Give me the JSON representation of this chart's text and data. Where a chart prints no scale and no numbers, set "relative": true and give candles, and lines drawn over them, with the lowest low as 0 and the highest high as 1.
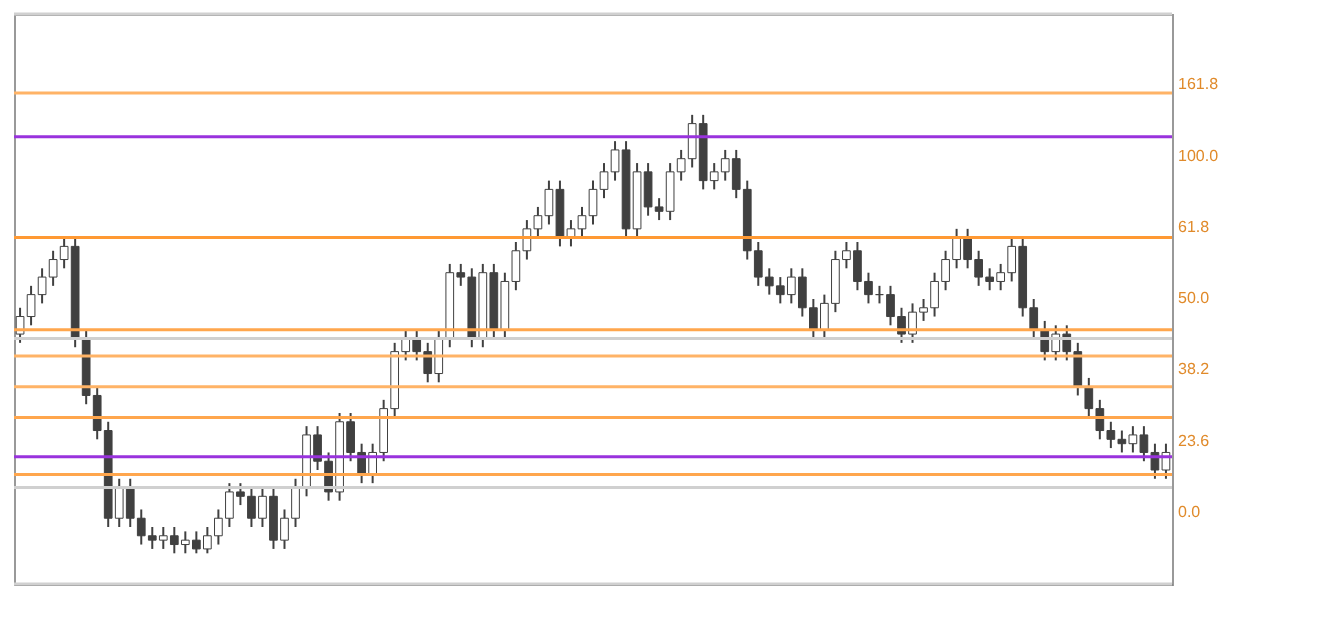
{
  "chart_data": {
    "type": "candlestick",
    "relative": true,
    "color": "#404040",
    "categories": [
      null,
      null,
      null,
      null,
      null,
      null,
      null,
      null,
      null,
      null,
      null,
      null,
      null,
      null,
      null,
      null,
      null,
      null,
      null,
      null,
      null,
      null,
      null,
      null,
      null,
      null,
      null,
      null,
      null,
      null,
      null,
      null,
      null,
      null,
      null,
      null,
      null,
      null,
      null,
      null,
      null,
      null,
      null,
      null,
      null,
      null,
      null,
      null,
      null,
      null,
      null,
      null,
      null,
      null,
      null,
      null,
      null,
      null,
      null,
      null,
      null,
      null,
      null,
      null,
      null,
      null,
      null,
      null,
      null,
      null,
      null,
      null,
      null,
      null,
      null,
      null,
      null,
      null,
      null,
      null,
      null,
      null,
      null,
      null,
      null,
      null,
      null,
      null,
      null,
      null,
      null,
      null,
      null,
      null,
      null,
      null,
      null,
      null,
      null,
      null,
      null,
      null,
      null,
      null,
      null
    ],
    "ohlc": [
      [
        0.5,
        0.56,
        0.48,
        0.54
      ],
      [
        0.54,
        0.61,
        0.52,
        0.59
      ],
      [
        0.59,
        0.65,
        0.57,
        0.63
      ],
      [
        0.63,
        0.69,
        0.61,
        0.67
      ],
      [
        0.67,
        0.72,
        0.65,
        0.7
      ],
      [
        0.7,
        0.72,
        0.47,
        0.49
      ],
      [
        0.49,
        0.51,
        0.34,
        0.36
      ],
      [
        0.36,
        0.38,
        0.26,
        0.28
      ],
      [
        0.28,
        0.3,
        0.06,
        0.08
      ],
      [
        0.08,
        0.17,
        0.06,
        0.15
      ],
      [
        0.15,
        0.17,
        0.06,
        0.08
      ],
      [
        0.08,
        0.1,
        0.02,
        0.04
      ],
      [
        0.04,
        0.06,
        0.01,
        0.03
      ],
      [
        0.03,
        0.06,
        0.01,
        0.04
      ],
      [
        0.04,
        0.06,
        0.0,
        0.02
      ],
      [
        0.02,
        0.05,
        0.0,
        0.03
      ],
      [
        0.03,
        0.05,
        0.0,
        0.01
      ],
      [
        0.01,
        0.06,
        0.0,
        0.04
      ],
      [
        0.04,
        0.1,
        0.02,
        0.08
      ],
      [
        0.08,
        0.16,
        0.06,
        0.14
      ],
      [
        0.14,
        0.16,
        0.11,
        0.13
      ],
      [
        0.13,
        0.15,
        0.06,
        0.08
      ],
      [
        0.08,
        0.15,
        0.06,
        0.13
      ],
      [
        0.13,
        0.15,
        0.01,
        0.03
      ],
      [
        0.03,
        0.1,
        0.01,
        0.08
      ],
      [
        0.08,
        0.17,
        0.06,
        0.15
      ],
      [
        0.15,
        0.29,
        0.13,
        0.27
      ],
      [
        0.27,
        0.29,
        0.19,
        0.21
      ],
      [
        0.21,
        0.23,
        0.12,
        0.14
      ],
      [
        0.14,
        0.32,
        0.12,
        0.3
      ],
      [
        0.3,
        0.32,
        0.21,
        0.23
      ],
      [
        0.23,
        0.25,
        0.16,
        0.18
      ],
      [
        0.18,
        0.25,
        0.16,
        0.23
      ],
      [
        0.23,
        0.35,
        0.21,
        0.33
      ],
      [
        0.33,
        0.48,
        0.31,
        0.46
      ],
      [
        0.46,
        0.51,
        0.44,
        0.49
      ],
      [
        0.49,
        0.51,
        0.44,
        0.46
      ],
      [
        0.46,
        0.48,
        0.39,
        0.41
      ],
      [
        0.41,
        0.51,
        0.39,
        0.49
      ],
      [
        0.49,
        0.66,
        0.47,
        0.64
      ],
      [
        0.64,
        0.66,
        0.61,
        0.63
      ],
      [
        0.63,
        0.65,
        0.47,
        0.49
      ],
      [
        0.49,
        0.66,
        0.47,
        0.64
      ],
      [
        0.64,
        0.66,
        0.49,
        0.51
      ],
      [
        0.51,
        0.64,
        0.49,
        0.62
      ],
      [
        0.62,
        0.71,
        0.6,
        0.69
      ],
      [
        0.69,
        0.76,
        0.67,
        0.74
      ],
      [
        0.74,
        0.79,
        0.72,
        0.77
      ],
      [
        0.77,
        0.85,
        0.75,
        0.83
      ],
      [
        0.83,
        0.85,
        0.7,
        0.72
      ],
      [
        0.72,
        0.76,
        0.7,
        0.74
      ],
      [
        0.74,
        0.79,
        0.72,
        0.77
      ],
      [
        0.77,
        0.85,
        0.75,
        0.83
      ],
      [
        0.83,
        0.89,
        0.81,
        0.87
      ],
      [
        0.87,
        0.94,
        0.85,
        0.92
      ],
      [
        0.92,
        0.94,
        0.72,
        0.74
      ],
      [
        0.74,
        0.89,
        0.72,
        0.87
      ],
      [
        0.87,
        0.89,
        0.77,
        0.79
      ],
      [
        0.79,
        0.81,
        0.76,
        0.78
      ],
      [
        0.78,
        0.89,
        0.76,
        0.87
      ],
      [
        0.87,
        0.92,
        0.85,
        0.9
      ],
      [
        0.9,
        1.0,
        0.88,
        0.98
      ],
      [
        0.98,
        1.0,
        0.83,
        0.85
      ],
      [
        0.85,
        0.89,
        0.83,
        0.87
      ],
      [
        0.87,
        0.92,
        0.85,
        0.9
      ],
      [
        0.9,
        0.92,
        0.81,
        0.83
      ],
      [
        0.83,
        0.85,
        0.67,
        0.69
      ],
      [
        0.69,
        0.71,
        0.61,
        0.63
      ],
      [
        0.63,
        0.65,
        0.59,
        0.61
      ],
      [
        0.61,
        0.63,
        0.57,
        0.59
      ],
      [
        0.59,
        0.65,
        0.57,
        0.63
      ],
      [
        0.63,
        0.65,
        0.54,
        0.56
      ],
      [
        0.56,
        0.58,
        0.49,
        0.51
      ],
      [
        0.51,
        0.59,
        0.49,
        0.57
      ],
      [
        0.57,
        0.69,
        0.55,
        0.67
      ],
      [
        0.67,
        0.71,
        0.65,
        0.69
      ],
      [
        0.69,
        0.71,
        0.6,
        0.62
      ],
      [
        0.62,
        0.64,
        0.57,
        0.59
      ],
      [
        0.59,
        0.61,
        0.57,
        0.59
      ],
      [
        0.59,
        0.61,
        0.52,
        0.54
      ],
      [
        0.54,
        0.56,
        0.48,
        0.5
      ],
      [
        0.5,
        0.57,
        0.48,
        0.55
      ],
      [
        0.55,
        0.58,
        0.53,
        0.56
      ],
      [
        0.56,
        0.64,
        0.54,
        0.62
      ],
      [
        0.62,
        0.69,
        0.6,
        0.67
      ],
      [
        0.67,
        0.74,
        0.65,
        0.72
      ],
      [
        0.72,
        0.74,
        0.65,
        0.67
      ],
      [
        0.67,
        0.69,
        0.61,
        0.63
      ],
      [
        0.63,
        0.65,
        0.6,
        0.62
      ],
      [
        0.62,
        0.66,
        0.6,
        0.64
      ],
      [
        0.64,
        0.72,
        0.62,
        0.7
      ],
      [
        0.7,
        0.72,
        0.54,
        0.56
      ],
      [
        0.56,
        0.58,
        0.49,
        0.51
      ],
      [
        0.51,
        0.53,
        0.44,
        0.46
      ],
      [
        0.46,
        0.52,
        0.44,
        0.5
      ],
      [
        0.5,
        0.52,
        0.44,
        0.46
      ],
      [
        0.46,
        0.48,
        0.36,
        0.38
      ],
      [
        0.38,
        0.4,
        0.31,
        0.33
      ],
      [
        0.33,
        0.35,
        0.26,
        0.28
      ],
      [
        0.28,
        0.3,
        0.24,
        0.26
      ],
      [
        0.26,
        0.28,
        0.23,
        0.25
      ],
      [
        0.25,
        0.29,
        0.23,
        0.27
      ],
      [
        0.27,
        0.29,
        0.21,
        0.23
      ],
      [
        0.23,
        0.25,
        0.17,
        0.19
      ],
      [
        0.19,
        0.25,
        0.17,
        0.23
      ]
    ],
    "ref_lines": [
      {
        "axis": "y",
        "value": 1.23,
        "color": "#d0d0d0"
      },
      {
        "axis": "y",
        "value": 1.05,
        "color": "#ffb366"
      },
      {
        "axis": "y",
        "value": 0.95,
        "color": "#9933dd"
      },
      {
        "axis": "y",
        "value": 0.72,
        "color": "#ff9933"
      },
      {
        "axis": "y",
        "value": 0.51,
        "color": "#ffa64d"
      },
      {
        "axis": "y",
        "value": 0.49,
        "color": "#d0d0d0"
      },
      {
        "axis": "y",
        "value": 0.45,
        "color": "#ffb366"
      },
      {
        "axis": "y",
        "value": 0.38,
        "color": "#ffb366"
      },
      {
        "axis": "y",
        "value": 0.31,
        "color": "#ffa64d"
      },
      {
        "axis": "y",
        "value": 0.22,
        "color": "#9933dd"
      },
      {
        "axis": "y",
        "value": 0.18,
        "color": "#ffa64d"
      },
      {
        "axis": "y",
        "value": 0.15,
        "color": "#d0d0d0"
      },
      {
        "axis": "y",
        "value": -0.07,
        "color": "#d0d0d0"
      }
    ],
    "annotations": [
      "161.8",
      "100.0",
      "61.8",
      "50.0",
      "38.2",
      "23.6",
      "0.0"
    ]
  }
}
